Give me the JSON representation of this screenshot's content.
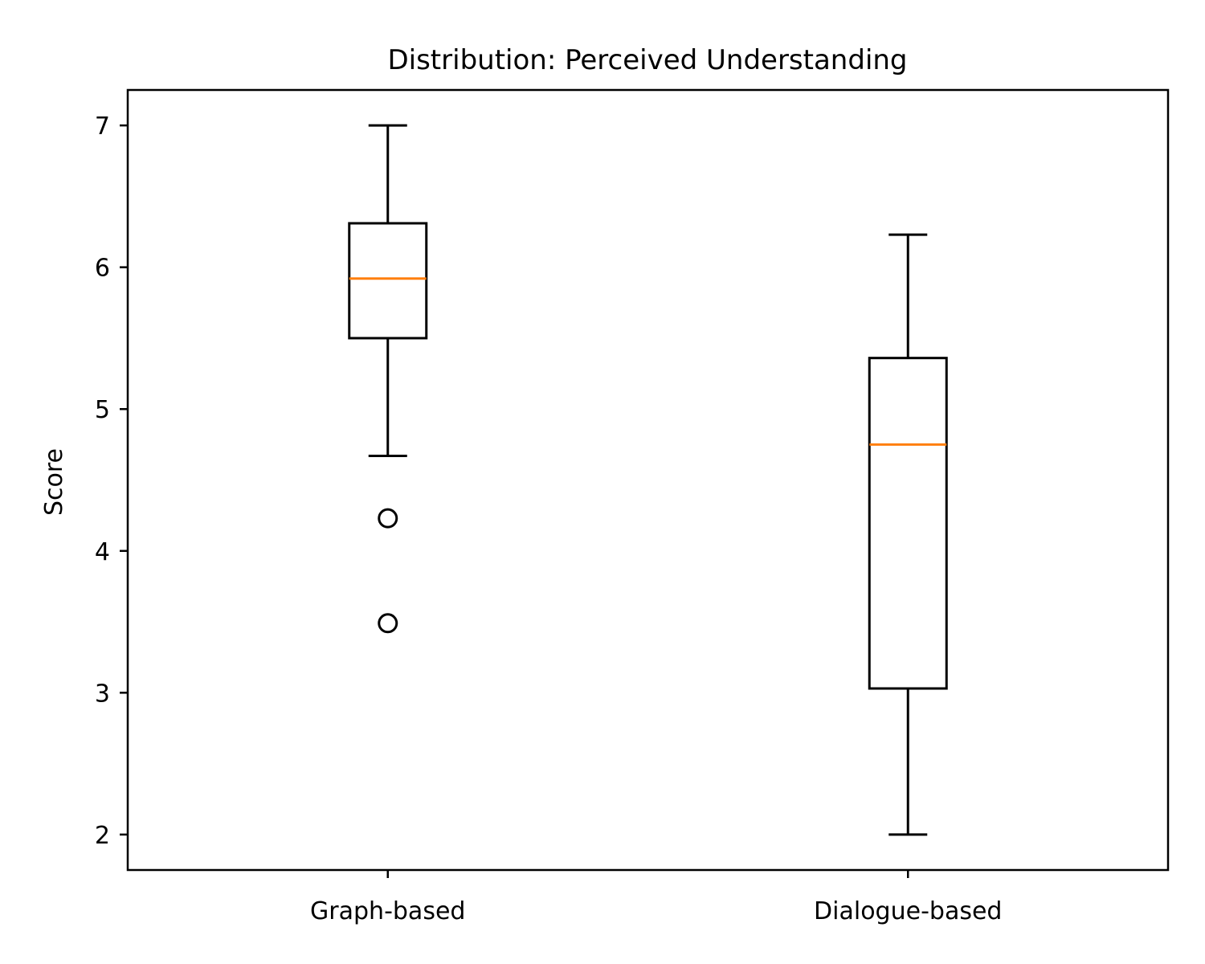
{
  "chart_data": {
    "type": "box",
    "title": "Distribution: Perceived Understanding",
    "xlabel": "",
    "ylabel": "Score",
    "ylim": [
      1.75,
      7.25
    ],
    "yticks": [
      2,
      3,
      4,
      5,
      6,
      7
    ],
    "categories": [
      "Graph-based",
      "Dialogue-based"
    ],
    "boxes": [
      {
        "label": "Graph-based",
        "whisker_low": 4.67,
        "q1": 5.5,
        "median": 5.92,
        "q3": 6.31,
        "whisker_high": 7.0,
        "outliers": [
          4.23,
          3.49
        ]
      },
      {
        "label": "Dialogue-based",
        "whisker_low": 2.0,
        "q1": 3.03,
        "median": 4.75,
        "q3": 5.36,
        "whisker_high": 6.23,
        "outliers": []
      }
    ],
    "grid": false,
    "colors": {
      "box": "#000000",
      "median": "#ff7f0e",
      "axis": "#000000",
      "background": "#ffffff"
    }
  }
}
